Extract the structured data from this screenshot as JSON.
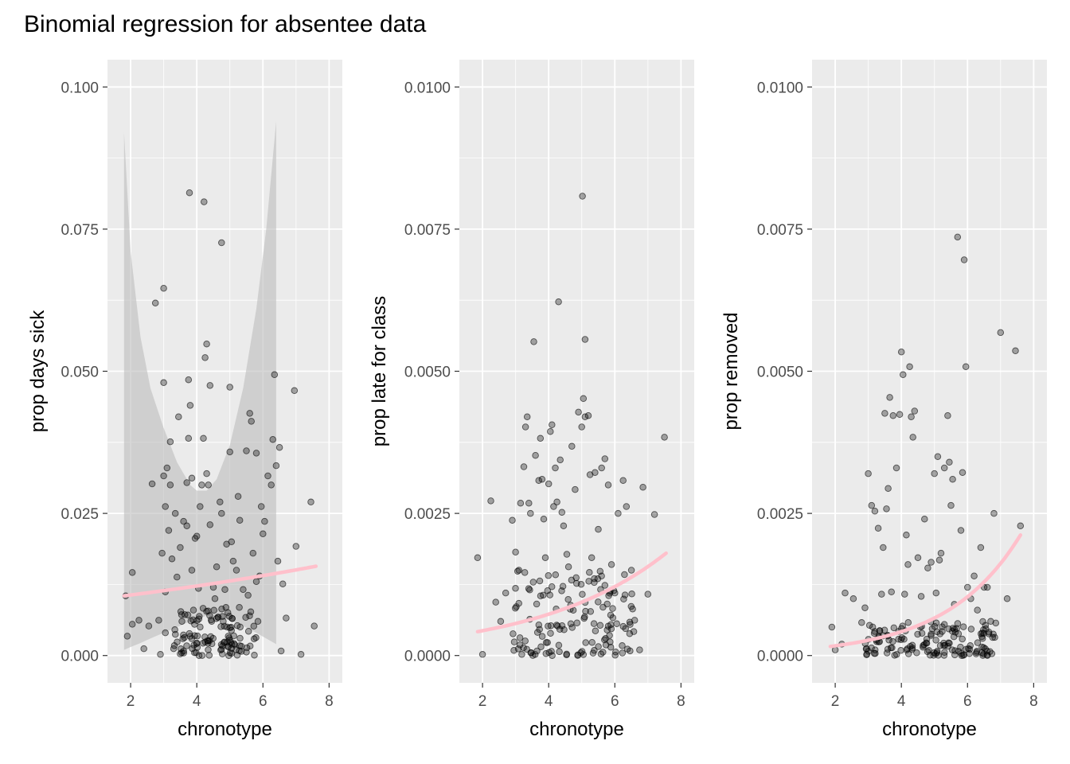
{
  "title": "Binomial regression for absentee data",
  "colors": {
    "panel_bg": "#ebebeb",
    "grid": "#ffffff",
    "point": "#000000",
    "fit": "#ffc0cb",
    "ribbon": "#bdbdbd",
    "tick_text": "#4d4d4d"
  },
  "chart_data": [
    {
      "type": "scatter",
      "xlabel": "chronotype",
      "ylabel": "prop days sick",
      "xlim": [
        1.3,
        8.4
      ],
      "ylim": [
        -0.0048,
        0.1048
      ],
      "x_ticks": [
        2,
        4,
        6,
        8
      ],
      "x_tick_labels": [
        "2",
        "4",
        "6",
        "8"
      ],
      "y_ticks": [
        0,
        0.025,
        0.05,
        0.075,
        0.1
      ],
      "y_tick_labels": [
        "0.000",
        "0.025",
        "0.050",
        "0.075",
        "0.100"
      ],
      "fit": {
        "x": [
          1.8,
          7.6
        ],
        "y": [
          0.0105,
          0.0157
        ]
      },
      "ribbon": {
        "x": [
          1.8,
          2.0,
          2.3,
          2.6,
          3.0,
          3.4,
          3.8,
          4.0,
          4.3,
          4.6,
          5.0,
          5.4,
          5.8,
          6.1,
          6.4
        ],
        "lower": [
          0.001,
          0.0015,
          0.0022,
          0.003,
          0.004,
          0.005,
          0.006,
          0.0065,
          0.007,
          0.0068,
          0.0062,
          0.0052,
          0.004,
          0.003,
          0.002
        ],
        "upper": [
          0.092,
          0.071,
          0.056,
          0.047,
          0.04,
          0.034,
          0.03,
          0.029,
          0.029,
          0.031,
          0.037,
          0.047,
          0.061,
          0.075,
          0.094
        ]
      },
      "points": [
        [
          1.85,
          0.0105
        ],
        [
          1.9,
          0.0034
        ],
        [
          2.05,
          0.0146
        ],
        [
          2.05,
          0.0055
        ],
        [
          2.25,
          0.0062
        ],
        [
          2.4,
          0.0012
        ],
        [
          2.55,
          0.0052
        ],
        [
          2.65,
          0.0302
        ],
        [
          2.75,
          0.062
        ],
        [
          2.85,
          0.0062
        ],
        [
          2.9,
          0.0002
        ],
        [
          2.95,
          0.018
        ],
        [
          3.0,
          0.0646
        ],
        [
          3.0,
          0.048
        ],
        [
          3.0,
          0.0316
        ],
        [
          3.05,
          0.0262
        ],
        [
          3.05,
          0.0112
        ],
        [
          3.05,
          0.004
        ],
        [
          3.1,
          0.033
        ],
        [
          3.15,
          0.022
        ],
        [
          3.2,
          0.0376
        ],
        [
          3.2,
          0.03
        ],
        [
          3.25,
          0.017
        ],
        [
          3.3,
          0.0012
        ],
        [
          3.35,
          0.025
        ],
        [
          3.4,
          0.0138
        ],
        [
          3.45,
          0.042
        ],
        [
          3.5,
          0.019
        ],
        [
          3.5,
          0.0003
        ],
        [
          3.55,
          0.006
        ],
        [
          3.6,
          0.0236
        ],
        [
          3.6,
          0.0008
        ],
        [
          3.7,
          0.0228
        ],
        [
          3.7,
          0.0304
        ],
        [
          3.75,
          0.0382
        ],
        [
          3.75,
          0.0485
        ],
        [
          3.78,
          0.0814
        ],
        [
          3.8,
          0.044
        ],
        [
          3.85,
          0.0312
        ],
        [
          3.85,
          0.015
        ],
        [
          3.9,
          0.008
        ],
        [
          3.95,
          0.0206
        ],
        [
          4.0,
          0.021
        ],
        [
          4.0,
          0.0022
        ],
        [
          4.05,
          0.0118
        ],
        [
          4.1,
          0.0262
        ],
        [
          4.15,
          0.03
        ],
        [
          4.2,
          0.0382
        ],
        [
          4.22,
          0.0798
        ],
        [
          4.25,
          0.0524
        ],
        [
          4.3,
          0.0548
        ],
        [
          4.3,
          0.032
        ],
        [
          4.35,
          0.03
        ],
        [
          4.4,
          0.0475
        ],
        [
          4.4,
          0.023
        ],
        [
          4.45,
          0.006
        ],
        [
          4.5,
          0.012
        ],
        [
          4.55,
          0.01
        ],
        [
          4.6,
          0.0156
        ],
        [
          4.7,
          0.027
        ],
        [
          4.75,
          0.0726
        ],
        [
          4.75,
          0.025
        ],
        [
          4.8,
          0.006
        ],
        [
          4.85,
          0.0116
        ],
        [
          4.9,
          0.0196
        ],
        [
          4.95,
          0.0034
        ],
        [
          5.0,
          0.0472
        ],
        [
          5.0,
          0.0358
        ],
        [
          5.05,
          0.02
        ],
        [
          5.1,
          0.0166
        ],
        [
          5.2,
          0.015
        ],
        [
          5.25,
          0.028
        ],
        [
          5.3,
          0.0238
        ],
        [
          5.4,
          0.0116
        ],
        [
          5.5,
          0.036
        ],
        [
          5.5,
          0.0006
        ],
        [
          5.55,
          0.0106
        ],
        [
          5.6,
          0.0426
        ],
        [
          5.65,
          0.0412
        ],
        [
          5.7,
          0.018
        ],
        [
          5.8,
          0.0356
        ],
        [
          5.8,
          0.013
        ],
        [
          5.85,
          0.006
        ],
        [
          5.9,
          0.014
        ],
        [
          5.95,
          0.0262
        ],
        [
          6.0,
          0.0214
        ],
        [
          6.05,
          0.0236
        ],
        [
          6.15,
          0.0316
        ],
        [
          6.25,
          0.03
        ],
        [
          6.3,
          0.038
        ],
        [
          6.35,
          0.0494
        ],
        [
          6.4,
          0.0334
        ],
        [
          6.45,
          0.0166
        ],
        [
          6.5,
          0.0366
        ],
        [
          6.55,
          0.0008
        ],
        [
          6.6,
          0.0126
        ],
        [
          6.7,
          0.0066
        ],
        [
          6.95,
          0.0466
        ],
        [
          7.0,
          0.0192
        ],
        [
          7.15,
          0.0002
        ],
        [
          7.45,
          0.027
        ],
        [
          7.55,
          0.0052
        ]
      ],
      "dense_band": {
        "x_range": [
          3.3,
          5.8
        ],
        "y_range": [
          0.0,
          0.0085
        ],
        "count": 110
      }
    },
    {
      "type": "scatter",
      "xlabel": "chronotype",
      "ylabel": "prop late for class",
      "xlim": [
        1.3,
        8.4
      ],
      "ylim": [
        -0.00048,
        0.01048
      ],
      "x_ticks": [
        2,
        4,
        6,
        8
      ],
      "x_tick_labels": [
        "2",
        "4",
        "6",
        "8"
      ],
      "y_ticks": [
        0,
        0.0025,
        0.005,
        0.0075,
        0.01
      ],
      "y_tick_labels": [
        "0.0000",
        "0.0025",
        "0.0050",
        "0.0075",
        "0.0100"
      ],
      "fit": {
        "x": [
          1.85,
          7.55
        ],
        "y": [
          0.00042,
          0.0018
        ]
      },
      "points": [
        [
          1.85,
          0.00172
        ],
        [
          2.0,
          2e-05
        ],
        [
          2.25,
          0.00272
        ],
        [
          2.4,
          0.00094
        ],
        [
          2.55,
          0.0006
        ],
        [
          2.7,
          0.0011
        ],
        [
          2.9,
          0.00238
        ],
        [
          3.0,
          0.00182
        ],
        [
          3.1,
          0.0015
        ],
        [
          3.15,
          0.00268
        ],
        [
          3.25,
          0.00332
        ],
        [
          3.3,
          0.00402
        ],
        [
          3.35,
          0.0042
        ],
        [
          3.4,
          0.00268
        ],
        [
          3.45,
          0.0025
        ],
        [
          3.55,
          0.00552
        ],
        [
          3.6,
          0.00352
        ],
        [
          3.7,
          0.00308
        ],
        [
          3.75,
          0.00382
        ],
        [
          3.8,
          0.0031
        ],
        [
          3.85,
          0.0024
        ],
        [
          3.9,
          0.00172
        ],
        [
          4.0,
          0.00302
        ],
        [
          4.05,
          0.00394
        ],
        [
          4.1,
          0.00406
        ],
        [
          4.15,
          0.00262
        ],
        [
          4.2,
          0.0033
        ],
        [
          4.25,
          0.0027
        ],
        [
          4.3,
          0.00622
        ],
        [
          4.35,
          0.00344
        ],
        [
          4.4,
          0.00252
        ],
        [
          4.45,
          0.00228
        ],
        [
          4.55,
          0.00178
        ],
        [
          4.6,
          0.00156
        ],
        [
          4.7,
          0.00368
        ],
        [
          4.8,
          0.00292
        ],
        [
          4.9,
          0.00428
        ],
        [
          5.0,
          0.00402
        ],
        [
          5.02,
          0.00808
        ],
        [
          5.05,
          0.00452
        ],
        [
          5.1,
          0.00556
        ],
        [
          5.1,
          0.0042
        ],
        [
          5.2,
          0.00422
        ],
        [
          5.25,
          0.00318
        ],
        [
          5.3,
          0.00172
        ],
        [
          5.4,
          0.00322
        ],
        [
          5.5,
          0.00222
        ],
        [
          5.6,
          0.0033
        ],
        [
          5.7,
          0.00346
        ],
        [
          5.8,
          0.003
        ],
        [
          5.9,
          0.0016
        ],
        [
          6.0,
          0.0011
        ],
        [
          6.1,
          0.0025
        ],
        [
          6.25,
          0.00308
        ],
        [
          6.35,
          0.00262
        ],
        [
          6.5,
          0.0015
        ],
        [
          6.6,
          0.00062
        ],
        [
          6.75,
          0.0001
        ],
        [
          6.85,
          0.00296
        ],
        [
          7.0,
          0.00108
        ],
        [
          7.2,
          0.00248
        ],
        [
          7.5,
          0.00384
        ]
      ],
      "dense_band": {
        "x_range": [
          2.9,
          6.6
        ],
        "y_range": [
          0.0,
          0.0015
        ],
        "count": 140
      }
    },
    {
      "type": "scatter",
      "xlabel": "chronotype",
      "ylabel": "prop removed",
      "xlim": [
        1.3,
        8.4
      ],
      "ylim": [
        -0.00048,
        0.01048
      ],
      "x_ticks": [
        2,
        4,
        6,
        8
      ],
      "x_tick_labels": [
        "2",
        "4",
        "6",
        "8"
      ],
      "y_ticks": [
        0,
        0.0025,
        0.005,
        0.0075,
        0.01
      ],
      "y_tick_labels": [
        "0.0000",
        "0.0025",
        "0.0050",
        "0.0075",
        "0.0100"
      ],
      "fit": {
        "x": [
          1.85,
          7.6
        ],
        "y": [
          0.00016,
          0.00212
        ]
      },
      "points": [
        [
          1.9,
          0.0005
        ],
        [
          2.0,
          0.0001
        ],
        [
          2.2,
          0.0002
        ],
        [
          2.3,
          0.0011
        ],
        [
          2.55,
          0.001
        ],
        [
          2.8,
          0.00058
        ],
        [
          2.9,
          0.00084
        ],
        [
          3.0,
          0.0032
        ],
        [
          3.1,
          0.00264
        ],
        [
          3.2,
          0.00254
        ],
        [
          3.3,
          0.00224
        ],
        [
          3.4,
          0.00108
        ],
        [
          3.45,
          0.0019
        ],
        [
          3.5,
          0.00426
        ],
        [
          3.55,
          0.00258
        ],
        [
          3.6,
          0.00294
        ],
        [
          3.65,
          0.00454
        ],
        [
          3.7,
          0.00112
        ],
        [
          3.75,
          0.00422
        ],
        [
          3.85,
          0.0033
        ],
        [
          3.95,
          0.00424
        ],
        [
          4.0,
          0.00534
        ],
        [
          4.05,
          0.00494
        ],
        [
          4.1,
          0.00108
        ],
        [
          4.15,
          0.00212
        ],
        [
          4.2,
          0.0016
        ],
        [
          4.25,
          0.00508
        ],
        [
          4.3,
          0.0042
        ],
        [
          4.35,
          0.00384
        ],
        [
          4.4,
          0.0043
        ],
        [
          4.5,
          0.00172
        ],
        [
          4.6,
          0.00104
        ],
        [
          4.7,
          0.0024
        ],
        [
          4.8,
          0.00154
        ],
        [
          4.9,
          0.00164
        ],
        [
          5.0,
          0.0032
        ],
        [
          5.05,
          0.0011
        ],
        [
          5.1,
          0.0035
        ],
        [
          5.15,
          0.00168
        ],
        [
          5.2,
          0.0018
        ],
        [
          5.3,
          0.0033
        ],
        [
          5.4,
          0.00422
        ],
        [
          5.45,
          0.0034
        ],
        [
          5.5,
          0.00264
        ],
        [
          5.55,
          0.0031
        ],
        [
          5.6,
          0.0009
        ],
        [
          5.7,
          0.00736
        ],
        [
          5.8,
          0.0022
        ],
        [
          5.85,
          0.00322
        ],
        [
          5.9,
          0.00696
        ],
        [
          5.95,
          0.00508
        ],
        [
          6.0,
          0.0012
        ],
        [
          6.1,
          0.001
        ],
        [
          6.2,
          0.0014
        ],
        [
          6.3,
          0.0008
        ],
        [
          6.4,
          0.0019
        ],
        [
          6.5,
          0.0012
        ],
        [
          6.6,
          0.0012
        ],
        [
          6.7,
          0.0006
        ],
        [
          6.8,
          0.0025
        ],
        [
          7.0,
          0.00568
        ],
        [
          7.2,
          0.001
        ],
        [
          7.45,
          0.00536
        ],
        [
          7.6,
          0.00228
        ]
      ],
      "dense_band": {
        "x_range": [
          2.9,
          6.9
        ],
        "y_range": [
          0.0,
          0.0006
        ],
        "count": 150
      }
    }
  ]
}
